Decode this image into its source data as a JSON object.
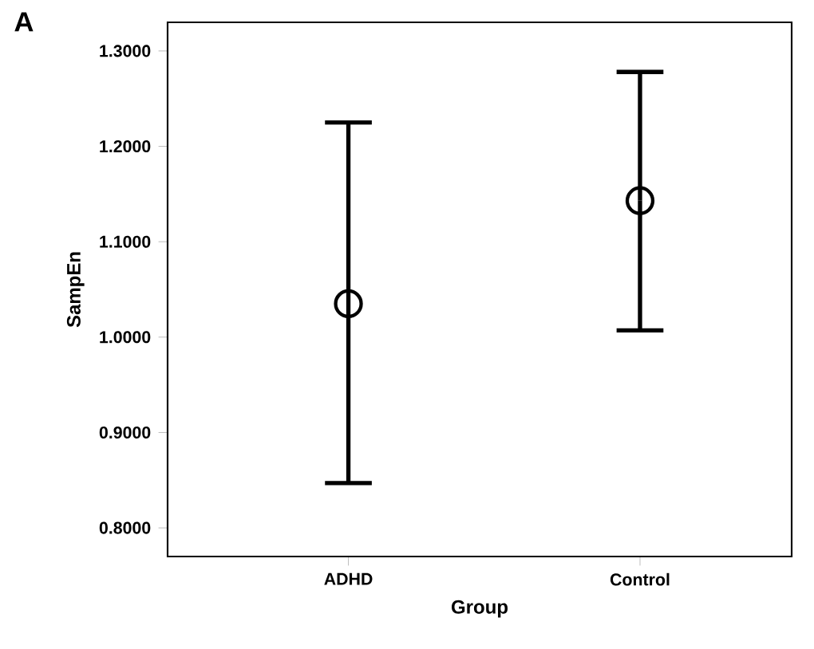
{
  "chart_data": {
    "type": "scatter",
    "xlabel": "Group",
    "ylabel": "SampEn",
    "categories": [
      "ADHD",
      "Control"
    ],
    "values": [
      1.035,
      1.143
    ],
    "errors": [
      [
        0.847,
        1.225
      ],
      [
        1.007,
        1.278
      ]
    ],
    "color": "#000000",
    "marker": "circle",
    "ylim": [
      0.77,
      1.33
    ],
    "yticks": [
      {
        "value": 0.8,
        "label": "0.8000"
      },
      {
        "value": 0.9,
        "label": "0.9000"
      },
      {
        "value": 1.0,
        "label": "1.0000"
      },
      {
        "value": 1.1,
        "label": "1.1000"
      },
      {
        "value": 1.2,
        "label": "1.2000"
      },
      {
        "value": 1.3,
        "label": "1.3000"
      }
    ],
    "annotations": [
      "A"
    ]
  }
}
